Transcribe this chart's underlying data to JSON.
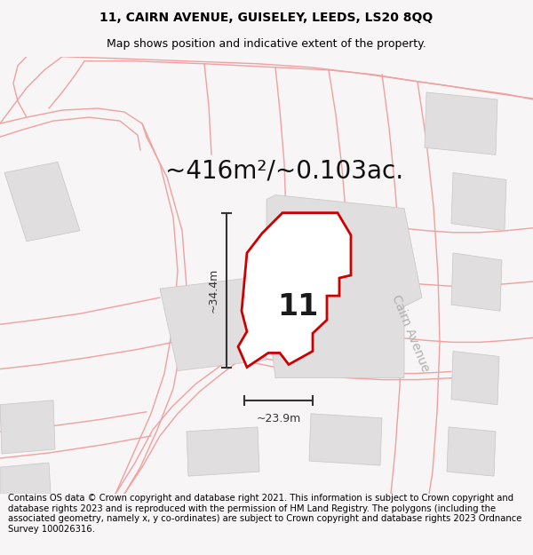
{
  "title_line1": "11, CAIRN AVENUE, GUISELEY, LEEDS, LS20 8QQ",
  "title_line2": "Map shows position and indicative extent of the property.",
  "footer_text": "Contains OS data © Crown copyright and database right 2021. This information is subject to Crown copyright and database rights 2023 and is reproduced with the permission of HM Land Registry. The polygons (including the associated geometry, namely x, y co-ordinates) are subject to Crown copyright and database rights 2023 Ordnance Survey 100026316.",
  "area_label": "~416m²/~0.103ac.",
  "property_number": "11",
  "width_label": "~23.9m",
  "height_label": "~34.4m",
  "road_label": "Cairn Avenue",
  "bg_color": "#f7f5f5",
  "map_bg": "#f5f3f3",
  "property_fill": "#f0eeee",
  "property_edge": "#cc0000",
  "road_line_color": "#f0a0a0",
  "building_fill": "#e0dede",
  "building_edge": "#c8c4c4",
  "title_fontsize": 10,
  "subtitle_fontsize": 9,
  "footer_fontsize": 7.2,
  "area_fontsize": 20,
  "number_fontsize": 24,
  "road_fontsize": 10
}
